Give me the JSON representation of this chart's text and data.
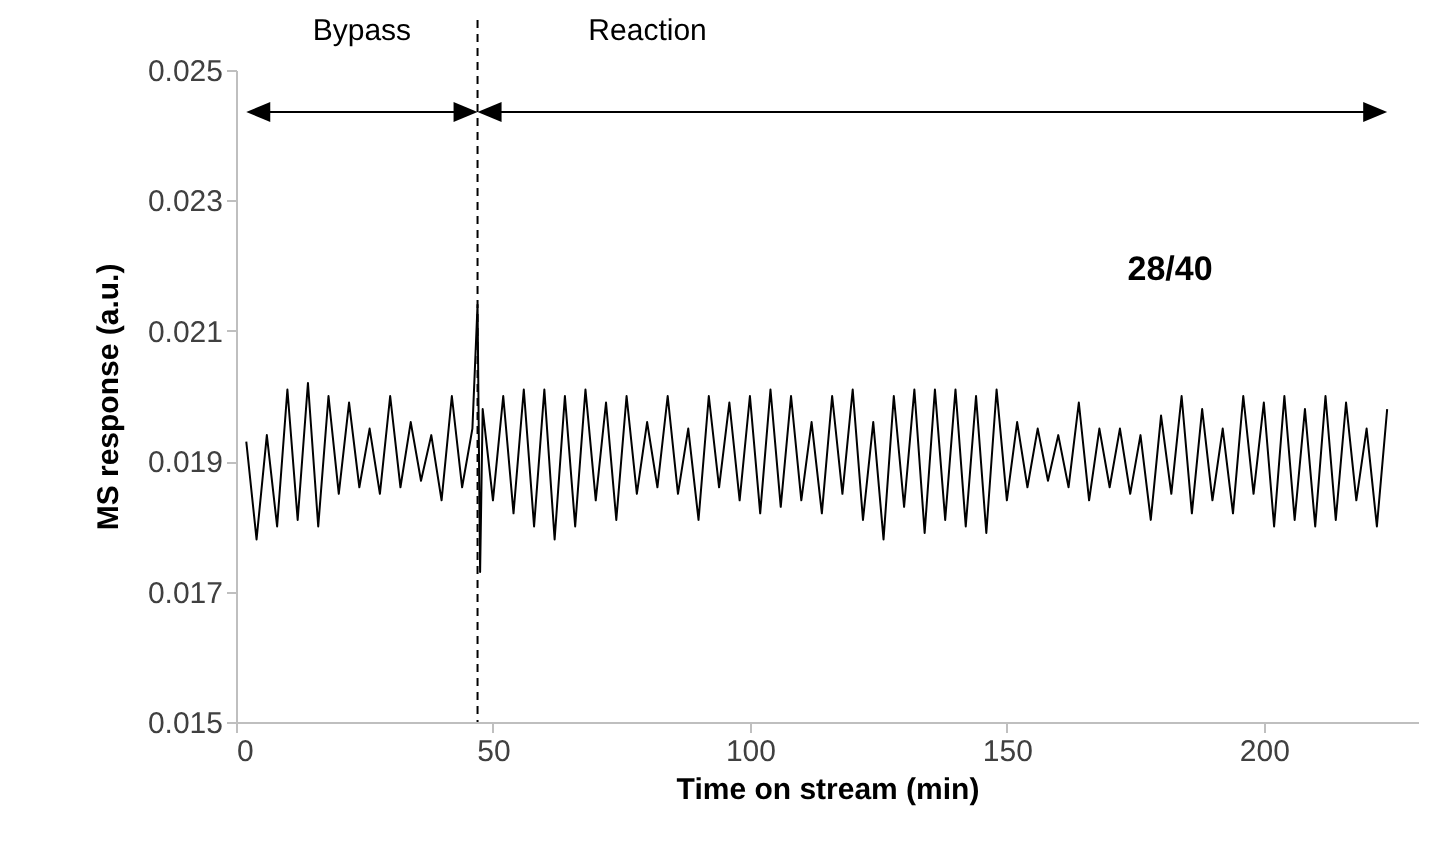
{
  "chart_data": {
    "type": "line",
    "xlabel": "Time on stream (min)",
    "ylabel": "MS response (a.u.)",
    "xlim": [
      0,
      230
    ],
    "xticks": [
      0,
      50,
      100,
      150,
      200
    ],
    "ylim": [
      0.015,
      0.025
    ],
    "yticks": [
      0.015,
      0.017,
      0.019,
      0.021,
      0.023,
      0.025
    ],
    "grid": false,
    "marker": "none",
    "line_style": "solid",
    "x": [
      2,
      4,
      6,
      8,
      10,
      12,
      14,
      16,
      18,
      20,
      22,
      24,
      26,
      28,
      30,
      32,
      34,
      36,
      38,
      40,
      42,
      44,
      46,
      47,
      47.5,
      48,
      50,
      52,
      54,
      56,
      58,
      60,
      62,
      64,
      66,
      68,
      70,
      72,
      74,
      76,
      78,
      80,
      82,
      84,
      86,
      88,
      90,
      92,
      94,
      96,
      98,
      100,
      102,
      104,
      106,
      108,
      110,
      112,
      114,
      116,
      118,
      120,
      122,
      124,
      126,
      128,
      130,
      132,
      134,
      136,
      138,
      140,
      142,
      144,
      146,
      148,
      150,
      152,
      154,
      156,
      158,
      160,
      162,
      164,
      166,
      168,
      170,
      172,
      174,
      176,
      178,
      180,
      182,
      184,
      186,
      188,
      190,
      192,
      194,
      196,
      198,
      200,
      202,
      204,
      206,
      208,
      210,
      212,
      214,
      216,
      218,
      220,
      222,
      224
    ],
    "series": [
      {
        "color": "#000000",
        "values": [
          0.0193,
          0.0178,
          0.0194,
          0.018,
          0.0201,
          0.0181,
          0.0202,
          0.018,
          0.02,
          0.0185,
          0.0199,
          0.0186,
          0.0195,
          0.0185,
          0.02,
          0.0186,
          0.0196,
          0.0187,
          0.0194,
          0.0184,
          0.02,
          0.0186,
          0.0195,
          0.0214,
          0.0173,
          0.0198,
          0.0184,
          0.02,
          0.0182,
          0.0201,
          0.018,
          0.0201,
          0.0178,
          0.02,
          0.018,
          0.0201,
          0.0184,
          0.0199,
          0.0181,
          0.02,
          0.0185,
          0.0196,
          0.0186,
          0.02,
          0.0185,
          0.0195,
          0.0181,
          0.02,
          0.0186,
          0.0199,
          0.0184,
          0.02,
          0.0182,
          0.0201,
          0.0183,
          0.02,
          0.0184,
          0.0196,
          0.0182,
          0.02,
          0.0185,
          0.0201,
          0.0181,
          0.0196,
          0.0178,
          0.02,
          0.0183,
          0.0201,
          0.0179,
          0.0201,
          0.0181,
          0.0201,
          0.018,
          0.02,
          0.0179,
          0.0201,
          0.0184,
          0.0196,
          0.0186,
          0.0195,
          0.0187,
          0.0194,
          0.0186,
          0.0199,
          0.0184,
          0.0195,
          0.0186,
          0.0195,
          0.0185,
          0.0194,
          0.0181,
          0.0197,
          0.0185,
          0.02,
          0.0182,
          0.0198,
          0.0184,
          0.0195,
          0.0182,
          0.02,
          0.0185,
          0.0199,
          0.018,
          0.02,
          0.0181,
          0.0198,
          0.018,
          0.02,
          0.0181,
          0.0199,
          0.0184,
          0.0195,
          0.018,
          0.0198
        ]
      }
    ],
    "ref_lines": [
      {
        "axis": "x",
        "value": 47,
        "color": "#000000",
        "line_style": "dashed"
      }
    ],
    "annotations": [
      "Bypass",
      "Reaction",
      "28/40"
    ]
  }
}
